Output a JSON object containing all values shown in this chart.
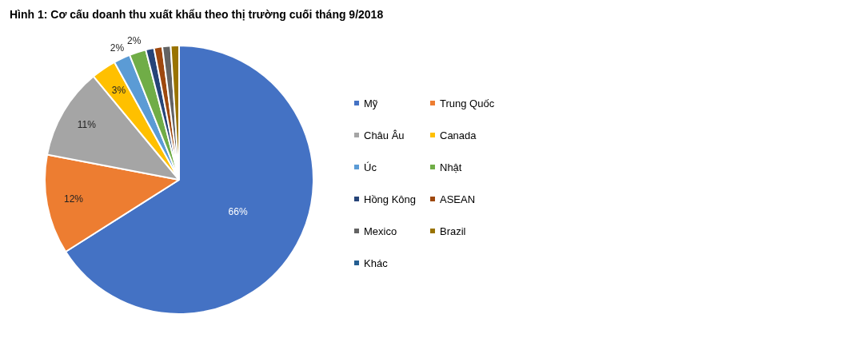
{
  "chart_data": {
    "type": "pie",
    "title": "Hình 1: Cơ cấu doanh thu xuất khẩu theo thị trường cuối tháng 9/2018",
    "categories": [
      "Mỹ",
      "Trung Quốc",
      "Châu Âu",
      "Canada",
      "Úc",
      "Nhật",
      "Hồng Kông",
      "ASEAN",
      "Mexico",
      "Brazil",
      "Khác"
    ],
    "values": [
      66,
      12,
      11,
      3,
      2,
      2,
      1,
      1,
      1,
      1,
      0
    ],
    "value_labels": [
      "66%",
      "12%",
      "11%",
      "3%",
      "2%",
      "2%",
      null,
      null,
      null,
      null,
      null
    ],
    "colors": [
      "#4472c4",
      "#ed7d31",
      "#a5a5a5",
      "#ffc000",
      "#5b9bd5",
      "#70ad47",
      "#264478",
      "#9e480e",
      "#636363",
      "#997300",
      "#255e91"
    ],
    "legend": "right"
  }
}
